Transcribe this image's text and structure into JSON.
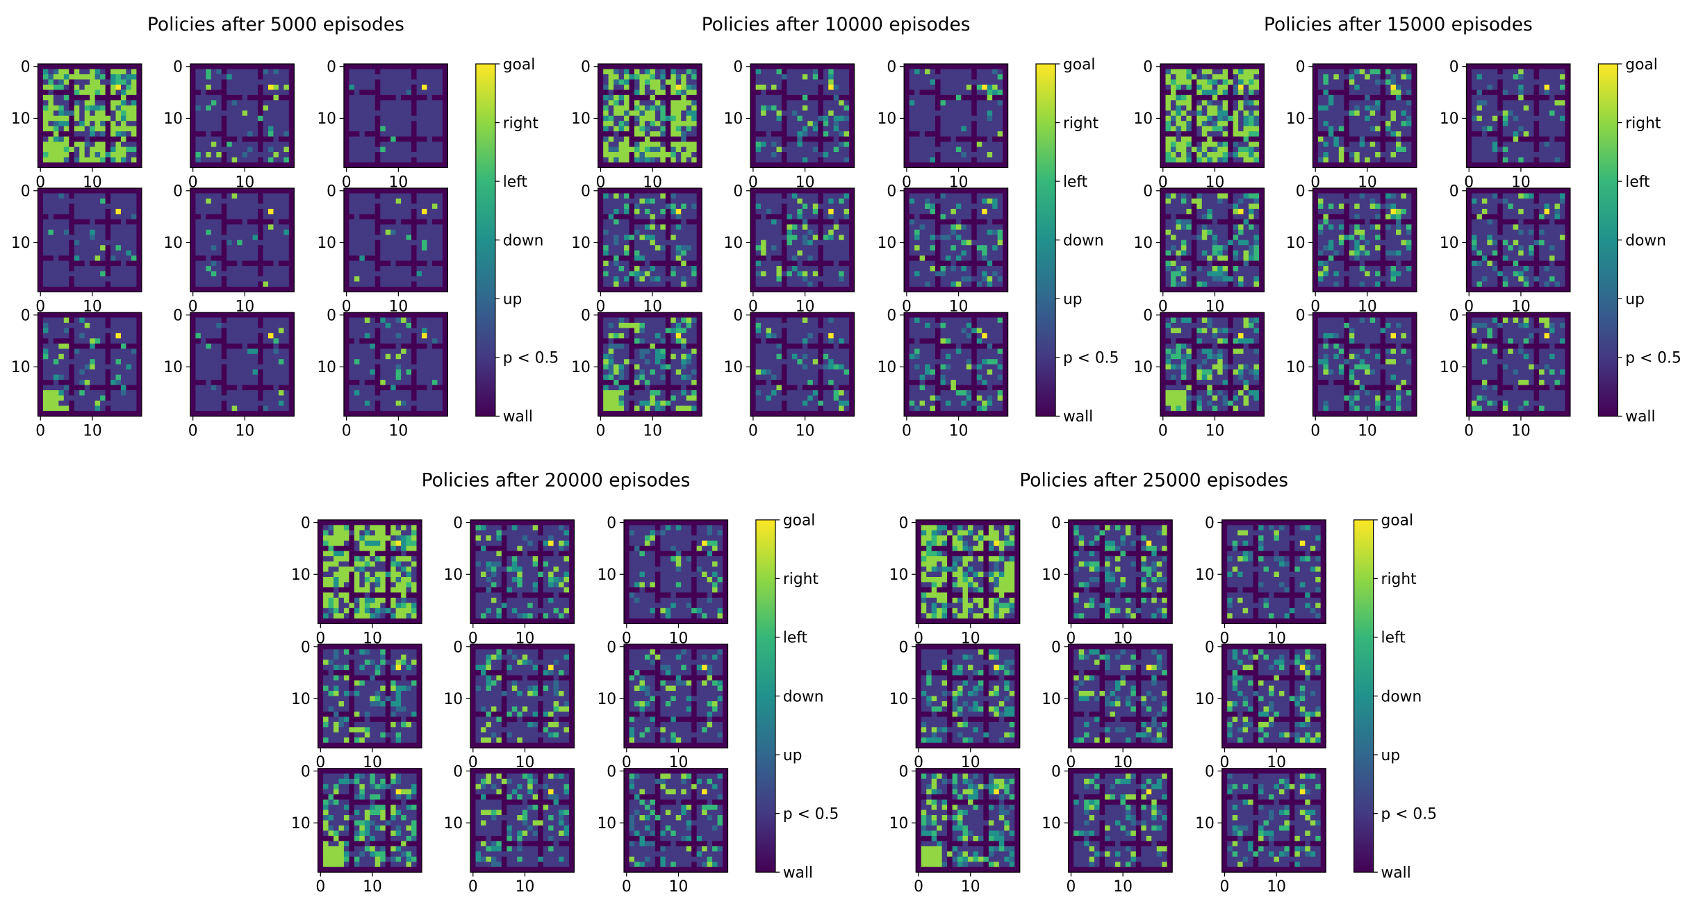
{
  "chart_data": {
    "type": "heatmap",
    "grid_size": [
      20,
      20
    ],
    "xticks": [
      "0",
      "10"
    ],
    "yticks": [
      "0",
      "10"
    ],
    "colorbar": {
      "labels": [
        "wall",
        "p < 0.5",
        "up",
        "down",
        "left",
        "right",
        "goal"
      ],
      "colors": [
        "#440154",
        "#443983",
        "#31688e",
        "#21918c",
        "#35b779",
        "#90d743",
        "#fde725"
      ]
    },
    "goal_cell": [
      4,
      15
    ],
    "groups": [
      {
        "title": "Policies after 5000 episodes",
        "activity": [
          0.75,
          0.12,
          0.03,
          0.06,
          0.04,
          0.06,
          0.18,
          0.04,
          0.12
        ]
      },
      {
        "title": "Policies after 10000 episodes",
        "activity": [
          0.75,
          0.2,
          0.12,
          0.3,
          0.22,
          0.2,
          0.4,
          0.2,
          0.22
        ]
      },
      {
        "title": "Policies after 15000 episodes",
        "activity": [
          0.75,
          0.25,
          0.15,
          0.35,
          0.28,
          0.25,
          0.42,
          0.22,
          0.25
        ]
      },
      {
        "title": "Policies after 20000 episodes",
        "activity": [
          0.75,
          0.3,
          0.2,
          0.35,
          0.3,
          0.28,
          0.45,
          0.28,
          0.28
        ]
      },
      {
        "title": "Policies after 25000 episodes",
        "activity": [
          0.75,
          0.3,
          0.22,
          0.38,
          0.32,
          0.3,
          0.45,
          0.3,
          0.3
        ]
      }
    ]
  }
}
